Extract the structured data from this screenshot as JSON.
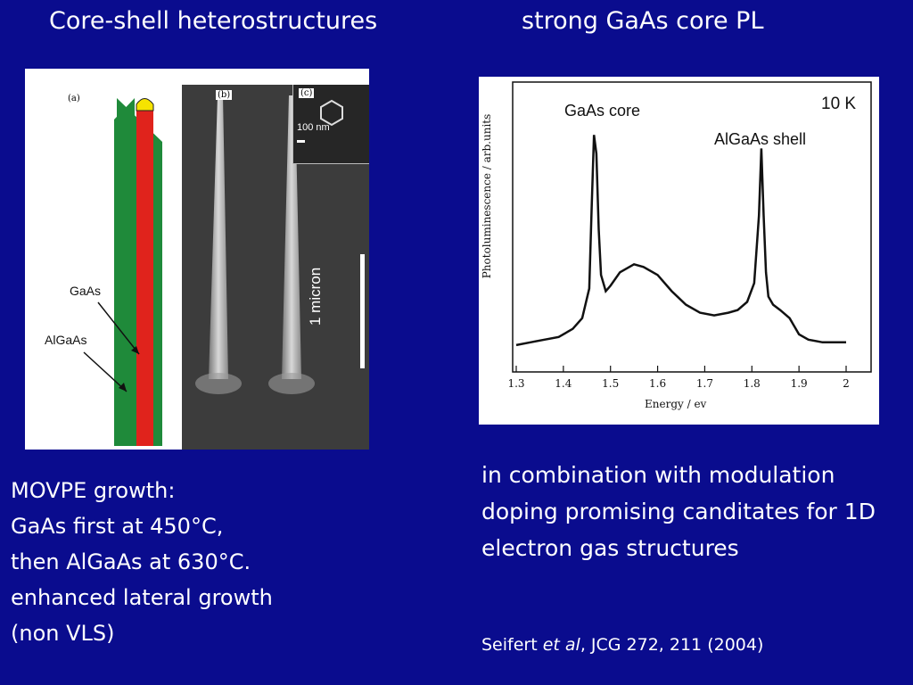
{
  "titles": {
    "left": "Core-shell heterostructures",
    "right": "strong GaAs core PL"
  },
  "figure_left": {
    "panel_a_letter": "(a)",
    "panel_b_letter": "(b)",
    "panel_c_letter": "(c)",
    "label_gaas": "GaAs",
    "label_algaas": "AlGaAs",
    "scale_inset": "100 nm",
    "scale_main": "1 micron",
    "colors": {
      "shell": "#1f8a3a",
      "core": "#e0231c",
      "cap": "#f6e300"
    }
  },
  "chart_data": {
    "type": "line",
    "title": "",
    "xlabel": "Energy / ev",
    "ylabel": "Photoluminescence / arb.units",
    "xlim": [
      1.3,
      2.0
    ],
    "ylim": [
      0,
      1.0
    ],
    "xticks": [
      "1.3",
      "1.4",
      "1.5",
      "1.6",
      "1.7",
      "1.8",
      "1.9",
      "2"
    ],
    "annotations": [
      "GaAs core",
      "AlGaAs shell",
      "10 K"
    ],
    "series": [
      {
        "x": [
          1.3,
          1.33,
          1.36,
          1.39,
          1.42,
          1.44,
          1.455,
          1.46,
          1.465,
          1.47,
          1.475,
          1.48,
          1.49,
          1.5,
          1.52,
          1.55,
          1.57,
          1.6,
          1.63,
          1.66,
          1.69,
          1.72,
          1.75,
          1.77,
          1.79,
          1.805,
          1.815,
          1.82,
          1.825,
          1.83,
          1.835,
          1.845,
          1.86,
          1.88,
          1.9,
          1.92,
          1.95,
          1.98,
          2.0
        ],
        "values": [
          0.07,
          0.08,
          0.09,
          0.1,
          0.13,
          0.17,
          0.28,
          0.58,
          0.85,
          0.78,
          0.5,
          0.33,
          0.27,
          0.29,
          0.34,
          0.37,
          0.36,
          0.33,
          0.27,
          0.22,
          0.19,
          0.18,
          0.19,
          0.2,
          0.23,
          0.3,
          0.55,
          0.8,
          0.55,
          0.34,
          0.25,
          0.22,
          0.2,
          0.17,
          0.11,
          0.09,
          0.08,
          0.08,
          0.08
        ]
      }
    ]
  },
  "growth_text": [
    "MOVPE growth:",
    "GaAs first at 450°C,",
    "then AlGaAs at 630°C.",
    "enhanced lateral growth",
    "(non VLS)"
  ],
  "combo_text": "in combination with modulation doping promising canditates for 1D electron gas structures",
  "citation": {
    "authors": "Seifert",
    "etal": "et al",
    "ref": ", JCG 272, 211 (2004)"
  }
}
